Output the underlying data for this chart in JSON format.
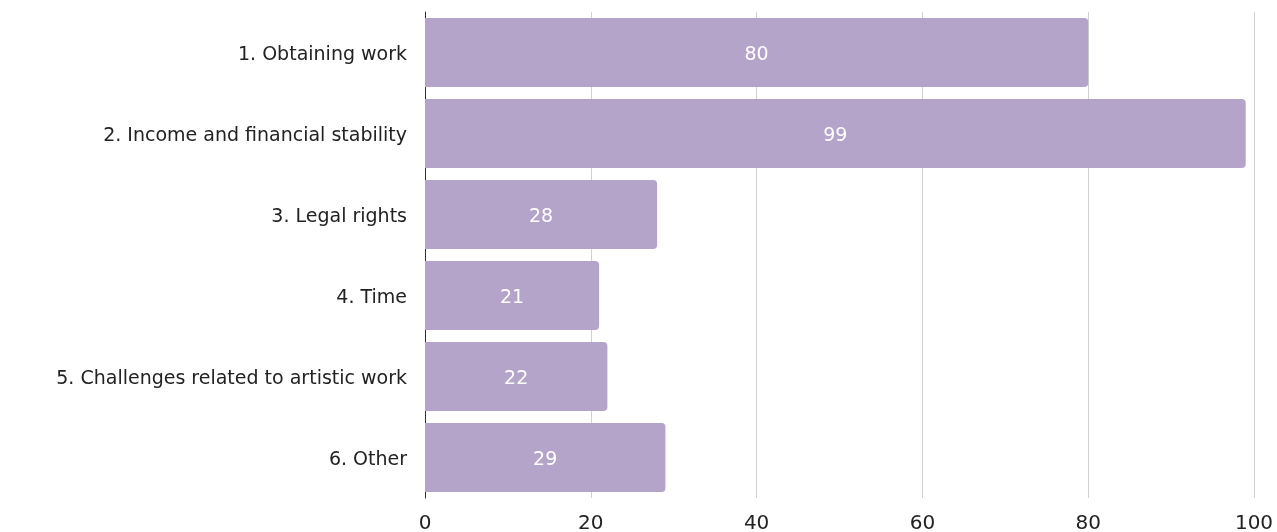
{
  "chart_data": {
    "type": "bar",
    "orientation": "horizontal",
    "categories": [
      "1. Obtaining work",
      "2. Income and financial stability",
      "3. Legal rights",
      "4. Time",
      "5. Challenges related to artistic work",
      "6. Other"
    ],
    "values": [
      80,
      99,
      28,
      21,
      22,
      29
    ],
    "color": "#b4a4c9",
    "xlim": [
      0,
      100
    ],
    "xticks": [
      0,
      20,
      40,
      60,
      80,
      100
    ],
    "grid": "x",
    "data_labels": true
  }
}
